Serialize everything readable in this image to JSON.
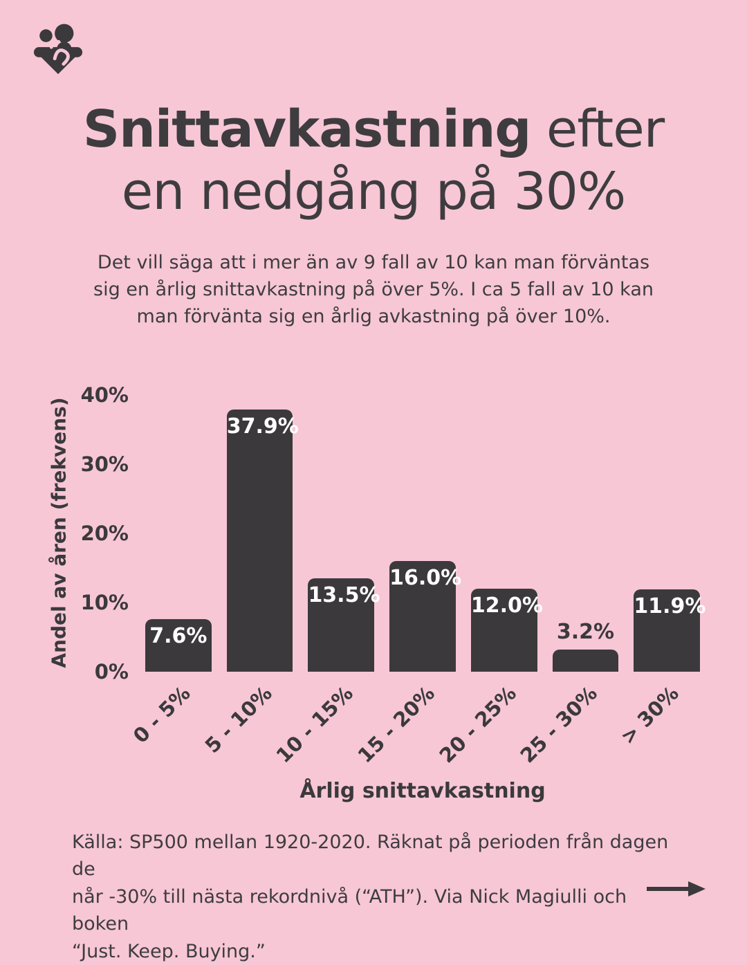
{
  "colors": {
    "background": "#F7C7D6",
    "ink": "#3B393C",
    "bar": "#3B393C",
    "bar_label_inside": "#FFFFFF"
  },
  "logo": {
    "icon": "two-people-forming-heart"
  },
  "header": {
    "title_bold": "Snittavkastning",
    "title_regular": " efter",
    "title_line2": "en nedgång på 30%",
    "subtitle": "Det vill säga att i mer än av 9 fall av 10 kan man förväntas\nsig en årlig snittavkastning på över 5%. I ca 5 fall av 10 kan\nman förvänta sig en årlig avkastning på över 10%."
  },
  "chart_data": {
    "type": "bar",
    "title": "",
    "categories": [
      "0 - 5%",
      "5 - 10%",
      "10 - 15%",
      "15 - 20%",
      "20 - 25%",
      "25 - 30%",
      "> 30%"
    ],
    "values": [
      7.6,
      37.9,
      13.5,
      16.0,
      12.0,
      3.2,
      11.9
    ],
    "value_labels": [
      "7.6%",
      "37.9%",
      "13.5%",
      "16.0%",
      "12.0%",
      "3.2%",
      "11.9%"
    ],
    "xlabel": "Årlig snittavkastning",
    "ylabel": "Andel av åren (frekvens)",
    "yticks": [
      "0%",
      "10%",
      "20%",
      "30%",
      "40%"
    ],
    "ylim": [
      0,
      40
    ],
    "grid": false,
    "legend": null,
    "bar_color": "#3B393C",
    "label_color_inside": "#FFFFFF",
    "label_color_outside": "#3B393C",
    "outside_label_threshold": 6
  },
  "footer": {
    "source_text": "Källa: SP500 mellan 1920-2020. Räknat på perioden från dagen de\nnår -30% till nästa rekordnivå (“ATH”). Via Nick Magiulli och boken\n“Just. Keep. Buying.”",
    "next_icon": "arrow-right"
  }
}
